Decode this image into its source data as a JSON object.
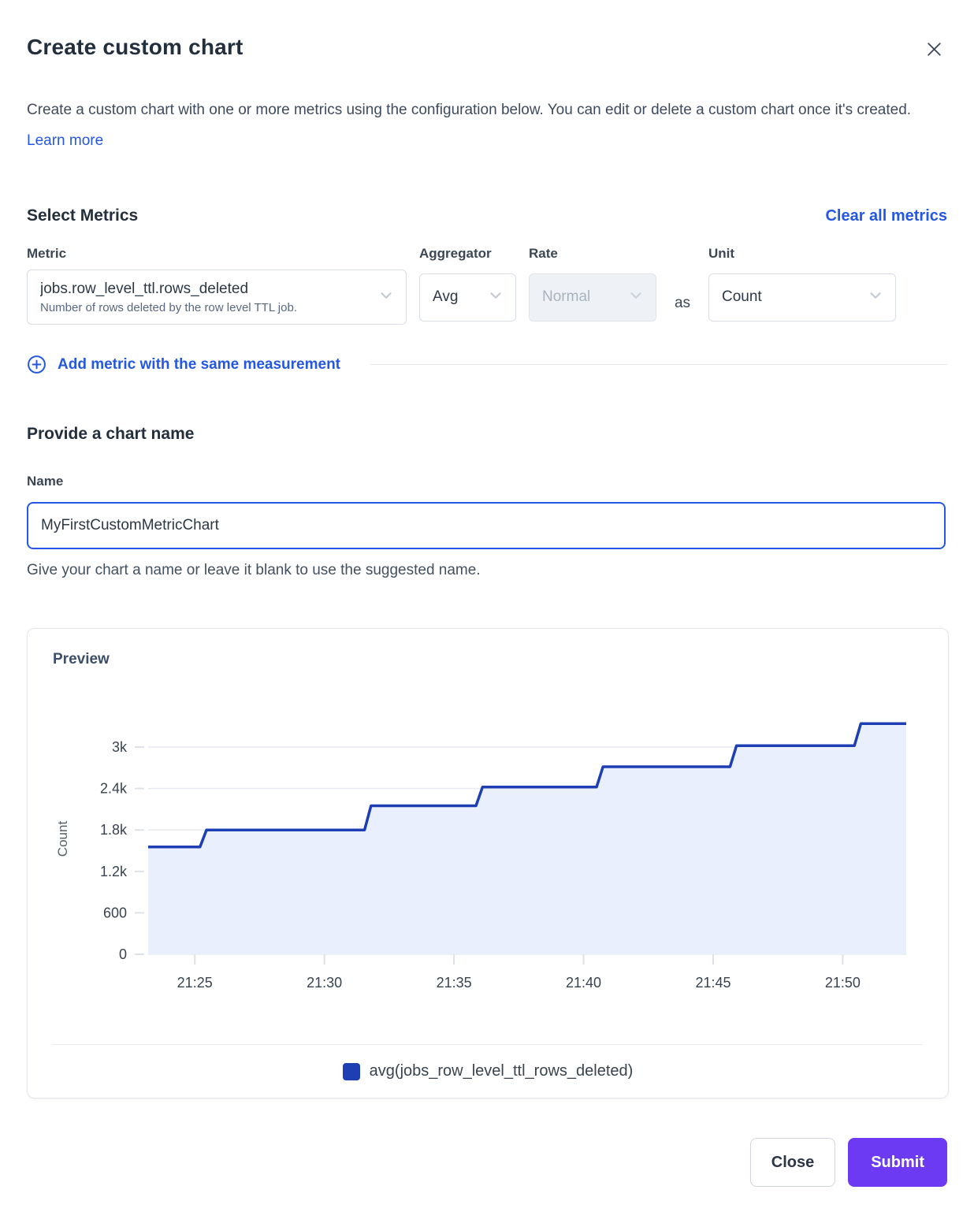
{
  "colors": {
    "accent_blue": "#2458e4",
    "submit_purple": "#6c3af2",
    "chart_line": "#1e3fb4",
    "chart_fill": "#e9effc"
  },
  "modal": {
    "title": "Create custom chart",
    "description": "Create a custom chart with one or more metrics using the configuration below. You can edit or delete a custom chart once it's created.",
    "learn_more": "Learn more"
  },
  "metrics": {
    "heading": "Select Metrics",
    "clear_all": "Clear all metrics",
    "metric_label": "Metric",
    "metric_value": "jobs.row_level_ttl.rows_deleted",
    "metric_description": "Number of rows deleted by the row level TTL job.",
    "aggregator_label": "Aggregator",
    "aggregator_value": "Avg",
    "rate_label": "Rate",
    "rate_value": "Normal",
    "rate_disabled": true,
    "as_text": "as",
    "unit_label": "Unit",
    "unit_value": "Count",
    "add_metric_label": "Add metric with the same measurement"
  },
  "name_section": {
    "heading": "Provide a chart name",
    "label": "Name",
    "value": "MyFirstCustomMetricChart",
    "helper": "Give your chart a name or leave it blank to use the suggested name."
  },
  "preview": {
    "heading": "Preview"
  },
  "chart_data": {
    "type": "area",
    "subtype": "step-line with area fill",
    "title": "Preview",
    "xlabel": "",
    "ylabel": "Count",
    "grid": true,
    "legend_position": "bottom",
    "legend": [
      {
        "label": "avg(jobs_row_level_ttl_rows_deleted)",
        "color": "#1e3fb4"
      }
    ],
    "line_color": "#1e3fb4",
    "fill_color": "#e9effc",
    "x_domain_minutes_after_21_00": [
      23.2,
      52.45
    ],
    "y_domain": [
      0,
      3342
    ],
    "x_ticks": [
      {
        "m": 25,
        "label": "21:25"
      },
      {
        "m": 30,
        "label": "21:30"
      },
      {
        "m": 35,
        "label": "21:35"
      },
      {
        "m": 40,
        "label": "21:40"
      },
      {
        "m": 45,
        "label": "21:45"
      },
      {
        "m": 50,
        "label": "21:50"
      }
    ],
    "y_ticks": [
      {
        "v": 0,
        "label": "0"
      },
      {
        "v": 600,
        "label": "600"
      },
      {
        "v": 1200,
        "label": "1.2k"
      },
      {
        "v": 1800,
        "label": "1.8k"
      },
      {
        "v": 2400,
        "label": "2.4k"
      },
      {
        "v": 3000,
        "label": "3k"
      }
    ],
    "points": [
      [
        23.2,
        1555
      ],
      [
        25.2,
        1555
      ],
      [
        25.45,
        1800
      ],
      [
        31.55,
        1800
      ],
      [
        31.8,
        2150
      ],
      [
        35.85,
        2150
      ],
      [
        36.1,
        2420
      ],
      [
        40.5,
        2420
      ],
      [
        40.75,
        2715
      ],
      [
        45.65,
        2715
      ],
      [
        45.9,
        3020
      ],
      [
        50.45,
        3020
      ],
      [
        50.7,
        3340
      ],
      [
        52.45,
        3340
      ]
    ]
  },
  "footer": {
    "close_label": "Close",
    "submit_label": "Submit"
  }
}
